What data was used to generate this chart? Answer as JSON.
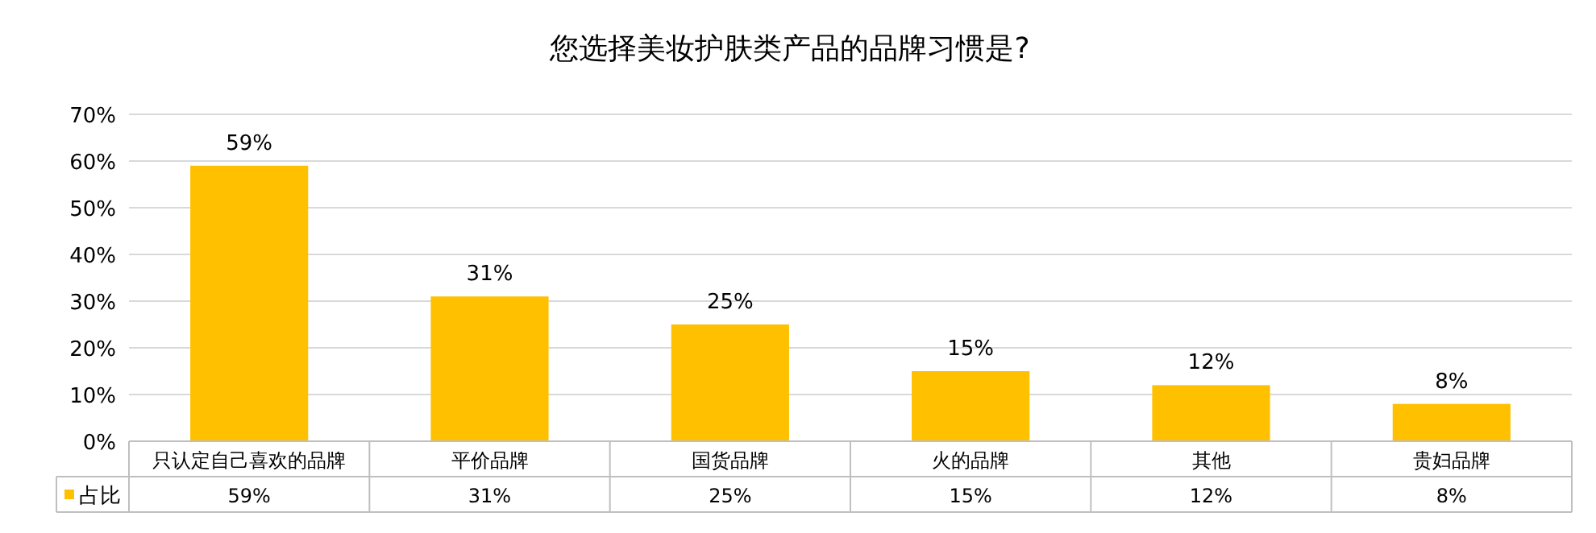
{
  "chart_data": {
    "type": "bar",
    "title": "您选择美妆护肤类产品的品牌习惯是?",
    "categories": [
      "只认定自己喜欢的品牌",
      "平价品牌",
      "国货品牌",
      "火的品牌",
      "其他",
      "贵妇品牌"
    ],
    "series": [
      {
        "name": "占比",
        "color": "#ffc000",
        "values": [
          59,
          31,
          25,
          15,
          12,
          8
        ],
        "value_labels": [
          "59%",
          "31%",
          "25%",
          "15%",
          "12%",
          "8%"
        ]
      }
    ],
    "ylim": [
      0,
      70
    ],
    "yticks": [
      {
        "value": 0,
        "label": "0%"
      },
      {
        "value": 10,
        "label": "10%"
      },
      {
        "value": 20,
        "label": "20%"
      },
      {
        "value": 30,
        "label": "30%"
      },
      {
        "value": 40,
        "label": "40%"
      },
      {
        "value": 50,
        "label": "50%"
      },
      {
        "value": 60,
        "label": "60%"
      },
      {
        "value": 70,
        "label": "70%"
      }
    ],
    "grid": "y",
    "legend": "bottom"
  }
}
